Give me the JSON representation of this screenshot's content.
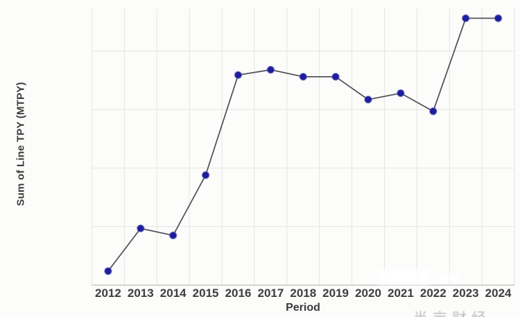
{
  "chart": {
    "title": "",
    "xlabel": "Period",
    "ylabel": "Sum of Line TPY (MTPY)"
  },
  "chart_data": {
    "type": "line",
    "categories": [
      "2012",
      "2013",
      "2014",
      "2015",
      "2016",
      "2017",
      "2018",
      "2019",
      "2020",
      "2021",
      "2022",
      "2023",
      "2024"
    ],
    "values": [
      0.24,
      0.97,
      0.85,
      1.88,
      3.59,
      3.68,
      3.56,
      3.56,
      3.17,
      3.28,
      2.97,
      4.56,
      4.56
    ],
    "title": "",
    "xlabel": "Period",
    "ylabel": "Sum of Line TPY (MTPY)",
    "ylim": [
      0,
      4.73
    ],
    "y_ticks_visible": false,
    "y_values_unit_note": "y-axis tick labels not visible; values estimated in horizontal-gridline units",
    "grid": "on",
    "legend": "none",
    "marker_color": "#1d1d9e",
    "line_color": "#54555c",
    "grid_color": "#e4e4e3"
  },
  "watermark": {
    "text": "半亩财经"
  }
}
